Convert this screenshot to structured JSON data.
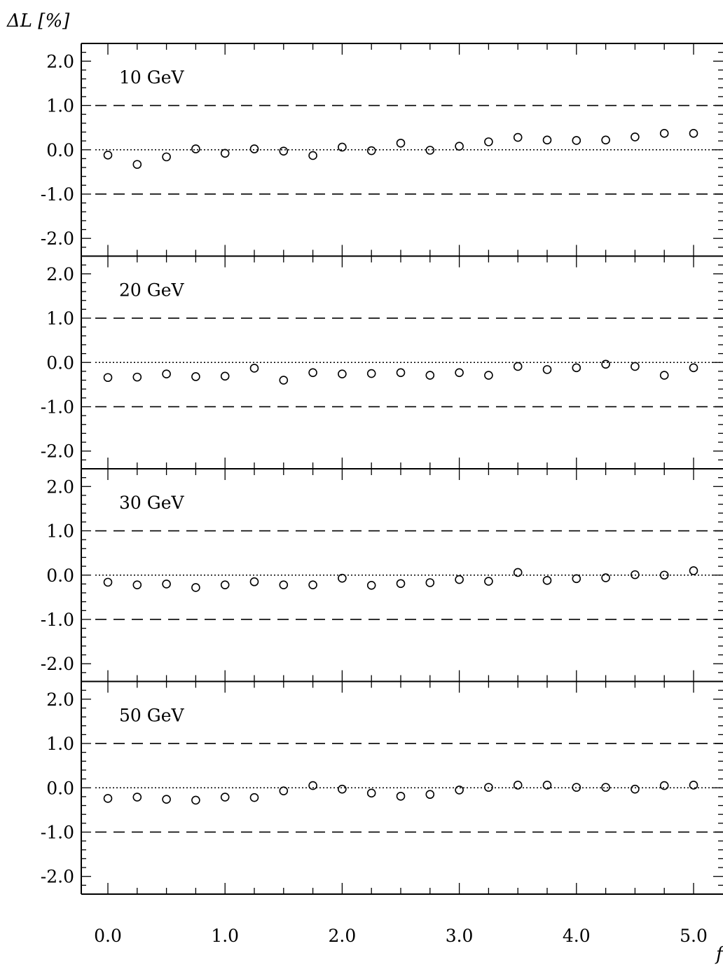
{
  "chart_data": {
    "type": "scatter",
    "ylabel": "ΔL [%]",
    "xlabel": "f",
    "xlim": [
      -0.25,
      5.25
    ],
    "ylim": [
      -2.4,
      2.4
    ],
    "x_ticks": [
      "0.0",
      "1.0",
      "2.0",
      "3.0",
      "4.0",
      "5.0"
    ],
    "y_ticks": [
      "2.0",
      "1.0",
      "0.0",
      "-1.0",
      "-2.0"
    ],
    "reference_lines": {
      "dashed": [
        1.0,
        -1.0
      ],
      "dotted": [
        0.0
      ]
    },
    "panels": [
      {
        "label": "10 GeV",
        "x": [
          0.0,
          0.25,
          0.5,
          0.75,
          1.0,
          1.25,
          1.5,
          1.75,
          2.0,
          2.25,
          2.5,
          2.75,
          3.0,
          3.25,
          3.5,
          3.75,
          4.0,
          4.25,
          4.5,
          4.75,
          5.0
        ],
        "y": [
          -0.12,
          -0.33,
          -0.16,
          0.02,
          -0.08,
          0.02,
          -0.03,
          -0.13,
          0.06,
          -0.02,
          0.15,
          -0.01,
          0.08,
          0.18,
          0.28,
          0.22,
          0.21,
          0.22,
          0.29,
          0.37,
          0.37
        ]
      },
      {
        "label": "20 GeV",
        "x": [
          0.0,
          0.25,
          0.5,
          0.75,
          1.0,
          1.25,
          1.5,
          1.75,
          2.0,
          2.25,
          2.5,
          2.75,
          3.0,
          3.25,
          3.5,
          3.75,
          4.0,
          4.25,
          4.5,
          4.75,
          5.0
        ],
        "y": [
          -0.34,
          -0.33,
          -0.26,
          -0.32,
          -0.31,
          -0.13,
          -0.4,
          -0.23,
          -0.26,
          -0.25,
          -0.23,
          -0.29,
          -0.23,
          -0.29,
          -0.09,
          -0.16,
          -0.12,
          -0.04,
          -0.09,
          -0.29,
          -0.12
        ]
      },
      {
        "label": "30 GeV",
        "x": [
          0.0,
          0.25,
          0.5,
          0.75,
          1.0,
          1.25,
          1.5,
          1.75,
          2.0,
          2.25,
          2.5,
          2.75,
          3.0,
          3.25,
          3.5,
          3.75,
          4.0,
          4.25,
          4.5,
          4.75,
          5.0
        ],
        "y": [
          -0.16,
          -0.22,
          -0.2,
          -0.28,
          -0.22,
          -0.15,
          -0.22,
          -0.22,
          -0.07,
          -0.23,
          -0.19,
          -0.17,
          -0.1,
          -0.14,
          0.06,
          -0.12,
          -0.08,
          -0.06,
          0.01,
          0.0,
          0.1
        ]
      },
      {
        "label": "50 GeV",
        "x": [
          0.0,
          0.25,
          0.5,
          0.75,
          1.0,
          1.25,
          1.5,
          1.75,
          2.0,
          2.25,
          2.5,
          2.75,
          3.0,
          3.25,
          3.5,
          3.75,
          4.0,
          4.25,
          4.5,
          4.75,
          5.0
        ],
        "y": [
          -0.24,
          -0.21,
          -0.26,
          -0.28,
          -0.21,
          -0.22,
          -0.07,
          0.05,
          -0.03,
          -0.12,
          -0.19,
          -0.15,
          -0.05,
          0.01,
          0.06,
          0.06,
          0.01,
          0.01,
          -0.03,
          0.05,
          0.06
        ]
      }
    ]
  }
}
